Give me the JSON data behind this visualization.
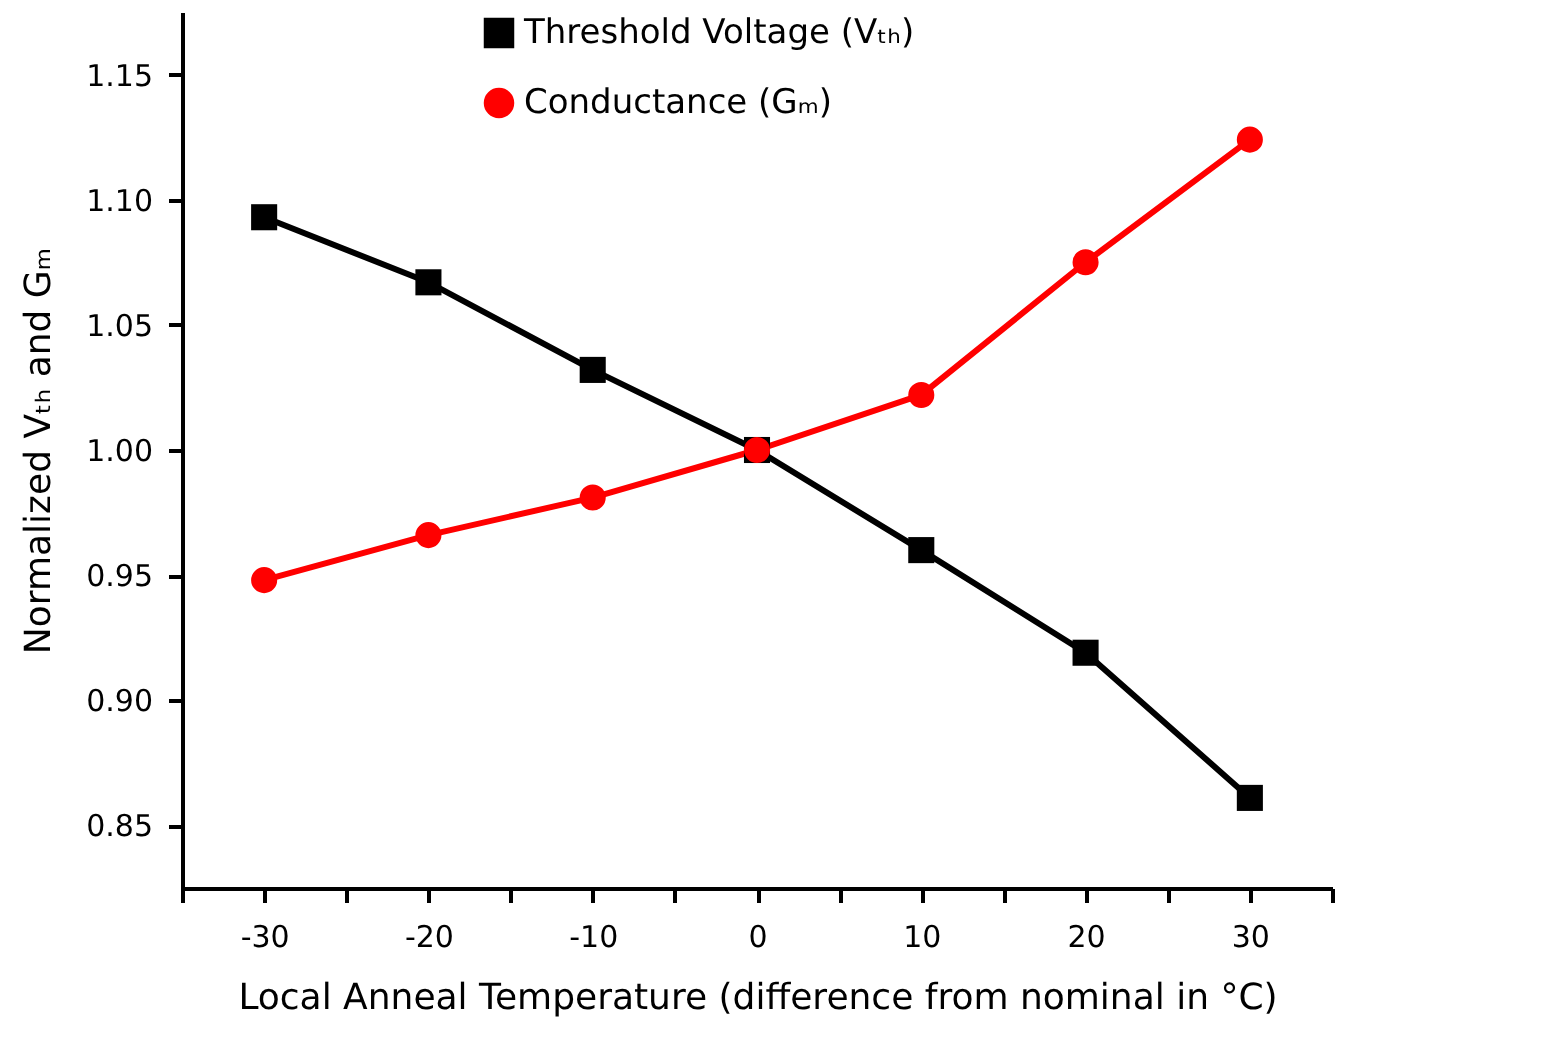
{
  "chart_data": {
    "type": "line",
    "xlabel": "Local Anneal Temperature (difference from nominal in °C)",
    "ylabel": "Normalized Vₜₕ and Gₘ",
    "x": [
      -30,
      -20,
      -10,
      0,
      10,
      20,
      30
    ],
    "series": [
      {
        "name": "Threshold Voltage (Vₜₕ)",
        "color": "#000000",
        "marker": "square",
        "values": [
          1.093,
          1.067,
          1.032,
          1.0,
          0.96,
          0.919,
          0.861
        ]
      },
      {
        "name": "Conductance (Gₘ)",
        "color": "#ff0000",
        "marker": "circle",
        "values": [
          0.948,
          0.966,
          0.981,
          1.0,
          1.022,
          1.075,
          1.124
        ]
      }
    ],
    "xlim": [
      -35,
      35
    ],
    "xticks": [
      {
        "value": -35,
        "label": null
      },
      -30,
      {
        "value": -25,
        "label": null
      },
      -20,
      {
        "value": -15,
        "label": null
      },
      -10,
      {
        "value": -5,
        "label": null
      },
      0,
      {
        "value": 5,
        "label": null
      },
      10,
      {
        "value": 15,
        "label": null
      },
      20,
      {
        "value": 25,
        "label": null
      },
      30,
      {
        "value": 35,
        "label": null
      }
    ],
    "ylim": [
      0.825,
      1.175
    ],
    "yticks": [
      {
        "value": 0.85,
        "label": "0.85"
      },
      {
        "value": 0.9,
        "label": "0.90"
      },
      {
        "value": 0.95,
        "label": "0.95"
      },
      {
        "value": 1.0,
        "label": "1.00"
      },
      {
        "value": 1.05,
        "label": "1.05"
      },
      {
        "value": 1.1,
        "label": "1.10"
      },
      {
        "value": 1.15,
        "label": "1.15"
      }
    ],
    "grid": false,
    "legend": "top",
    "line_style": "solid"
  }
}
